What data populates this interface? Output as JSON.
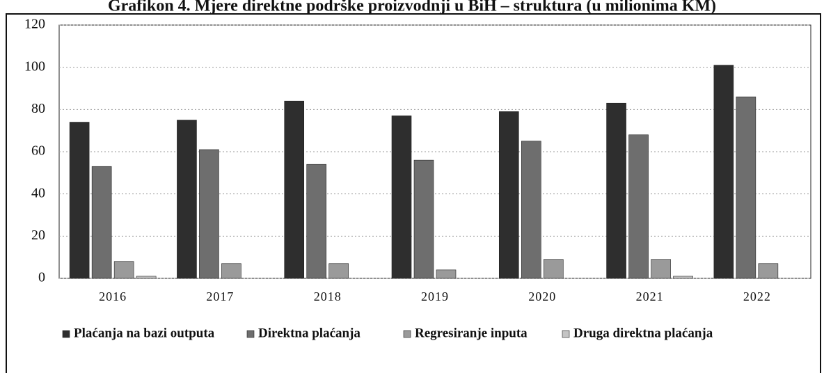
{
  "chart_data": {
    "type": "bar",
    "title": "Grafikon 4. Mjere direktne podrške proizvodnji u BiH – struktura (u milionima KM)",
    "categories": [
      "2016",
      "2017",
      "2018",
      "2019",
      "2020",
      "2021",
      "2022"
    ],
    "series": [
      {
        "name": "Plaćanja na bazi outputa",
        "color": "#2e2e2e",
        "values": [
          74,
          75,
          84,
          77,
          79,
          83,
          101
        ]
      },
      {
        "name": "Direktna plaćanja",
        "color": "#6e6e6e",
        "values": [
          53,
          61,
          54,
          56,
          65,
          68,
          86
        ]
      },
      {
        "name": "Regresiranje inputa",
        "color": "#9a9a9a",
        "values": [
          8,
          7,
          7,
          4,
          9,
          9,
          7
        ]
      },
      {
        "name": "Druga direktna plaćanja",
        "color": "#c4c4c4",
        "values": [
          1,
          0,
          0,
          0,
          0,
          1,
          0
        ]
      }
    ],
    "ylim": [
      0,
      120
    ],
    "yticks": [
      0,
      20,
      40,
      60,
      80,
      100,
      120
    ],
    "grid": true,
    "legend": "bottom"
  }
}
